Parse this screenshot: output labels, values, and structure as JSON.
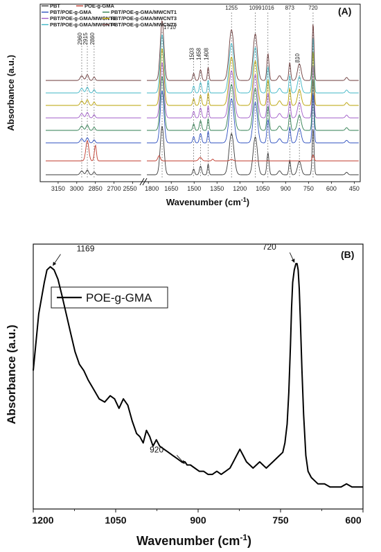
{
  "chart_data": [
    {
      "type": "line",
      "panel_label": "(A)",
      "xlabel": "Wavenumber (cm",
      "xlabel_sup": "-1",
      "xlabel_close": ")",
      "ylabel": "Absorbance (a.u.)",
      "x_axis_break": [
        1800,
        2550
      ],
      "x_ticks": [
        "3150",
        "3000",
        "2850",
        "2700",
        "2550",
        "1800",
        "1650",
        "1500",
        "1350",
        "1200",
        "1050",
        "900",
        "750",
        "600",
        "450"
      ],
      "x_reversed": true,
      "peak_markers": [
        "2960",
        "2915",
        "2860",
        "1710",
        "1503",
        "1458",
        "1408",
        "1255",
        "1099",
        "1016",
        "873",
        "810",
        "720"
      ],
      "legend_placement": "top-left",
      "series": [
        {
          "name": "PBT",
          "color": "#3a3a3a"
        },
        {
          "name": "POE-g-GMA",
          "color": "#c0392b"
        },
        {
          "name": "PBT/POE-g-GMA",
          "color": "#2c4fbf"
        },
        {
          "name": "PBT/POE-g-GMA/MWCNT1",
          "color": "#2e7d4f"
        },
        {
          "name": "PBT/POE-g-GMA/MWCNT2",
          "color": "#a05cc8"
        },
        {
          "name": "PBT/POE-g-GMA/MWCNT3",
          "color": "#b8a000"
        },
        {
          "name": "PBT/POE-g-GMA/MWCNT4",
          "color": "#3fb6c6"
        },
        {
          "name": "PBT/POE-g-GMA/MWCNT5",
          "color": "#6b3a3a"
        }
      ]
    },
    {
      "type": "line",
      "panel_label": "(B)",
      "xlabel": "Wavenumber (cm",
      "xlabel_sup": "-1",
      "xlabel_close": ")",
      "ylabel": "Absorbance (a.u.)",
      "xlim": [
        1200,
        600
      ],
      "x_ticks": [
        "1200",
        "1050",
        "900",
        "750",
        "600"
      ],
      "legend": "POE-g-GMA",
      "series": [
        {
          "name": "POE-g-GMA",
          "color": "#000000",
          "x": [
            1200,
            1190,
            1180,
            1175,
            1169,
            1162,
            1155,
            1148,
            1140,
            1132,
            1124,
            1116,
            1108,
            1100,
            1090,
            1080,
            1070,
            1060,
            1052,
            1044,
            1036,
            1028,
            1020,
            1012,
            1006,
            1000,
            994,
            988,
            982,
            976,
            970,
            962,
            954,
            946,
            938,
            930,
            924,
            920,
            914,
            906,
            898,
            890,
            882,
            874,
            866,
            858,
            850,
            842,
            836,
            830,
            824,
            818,
            812,
            806,
            800,
            794,
            788,
            782,
            776,
            770,
            764,
            758,
            752,
            746,
            742,
            738,
            735,
            732,
            730,
            728,
            725,
            722,
            720,
            718,
            716,
            714,
            711,
            708,
            704,
            700,
            694,
            688,
            682,
            676,
            670,
            660,
            650,
            640,
            630,
            620,
            610,
            600
          ],
          "y": [
            0.42,
            0.6,
            0.7,
            0.74,
            0.75,
            0.74,
            0.71,
            0.66,
            0.6,
            0.54,
            0.48,
            0.44,
            0.42,
            0.39,
            0.36,
            0.33,
            0.32,
            0.34,
            0.33,
            0.3,
            0.33,
            0.31,
            0.26,
            0.22,
            0.21,
            0.19,
            0.23,
            0.21,
            0.18,
            0.2,
            0.18,
            0.17,
            0.16,
            0.15,
            0.14,
            0.13,
            0.13,
            0.12,
            0.12,
            0.11,
            0.1,
            0.1,
            0.09,
            0.09,
            0.1,
            0.09,
            0.1,
            0.11,
            0.13,
            0.15,
            0.17,
            0.15,
            0.13,
            0.12,
            0.11,
            0.12,
            0.13,
            0.12,
            0.11,
            0.12,
            0.13,
            0.14,
            0.15,
            0.16,
            0.19,
            0.25,
            0.35,
            0.5,
            0.62,
            0.7,
            0.74,
            0.76,
            0.76,
            0.74,
            0.68,
            0.58,
            0.42,
            0.28,
            0.15,
            0.1,
            0.08,
            0.07,
            0.06,
            0.06,
            0.06,
            0.05,
            0.05,
            0.05,
            0.06,
            0.05,
            0.05,
            0.05
          ],
          "ylim": [
            -0.02,
            0.8
          ],
          "annotations": [
            {
              "text": "1169",
              "x": 1169,
              "y": 0.75
            },
            {
              "text": "720",
              "x": 720,
              "y": 0.76
            },
            {
              "text": "920",
              "x": 920,
              "y": 0.12
            }
          ]
        }
      ]
    }
  ]
}
